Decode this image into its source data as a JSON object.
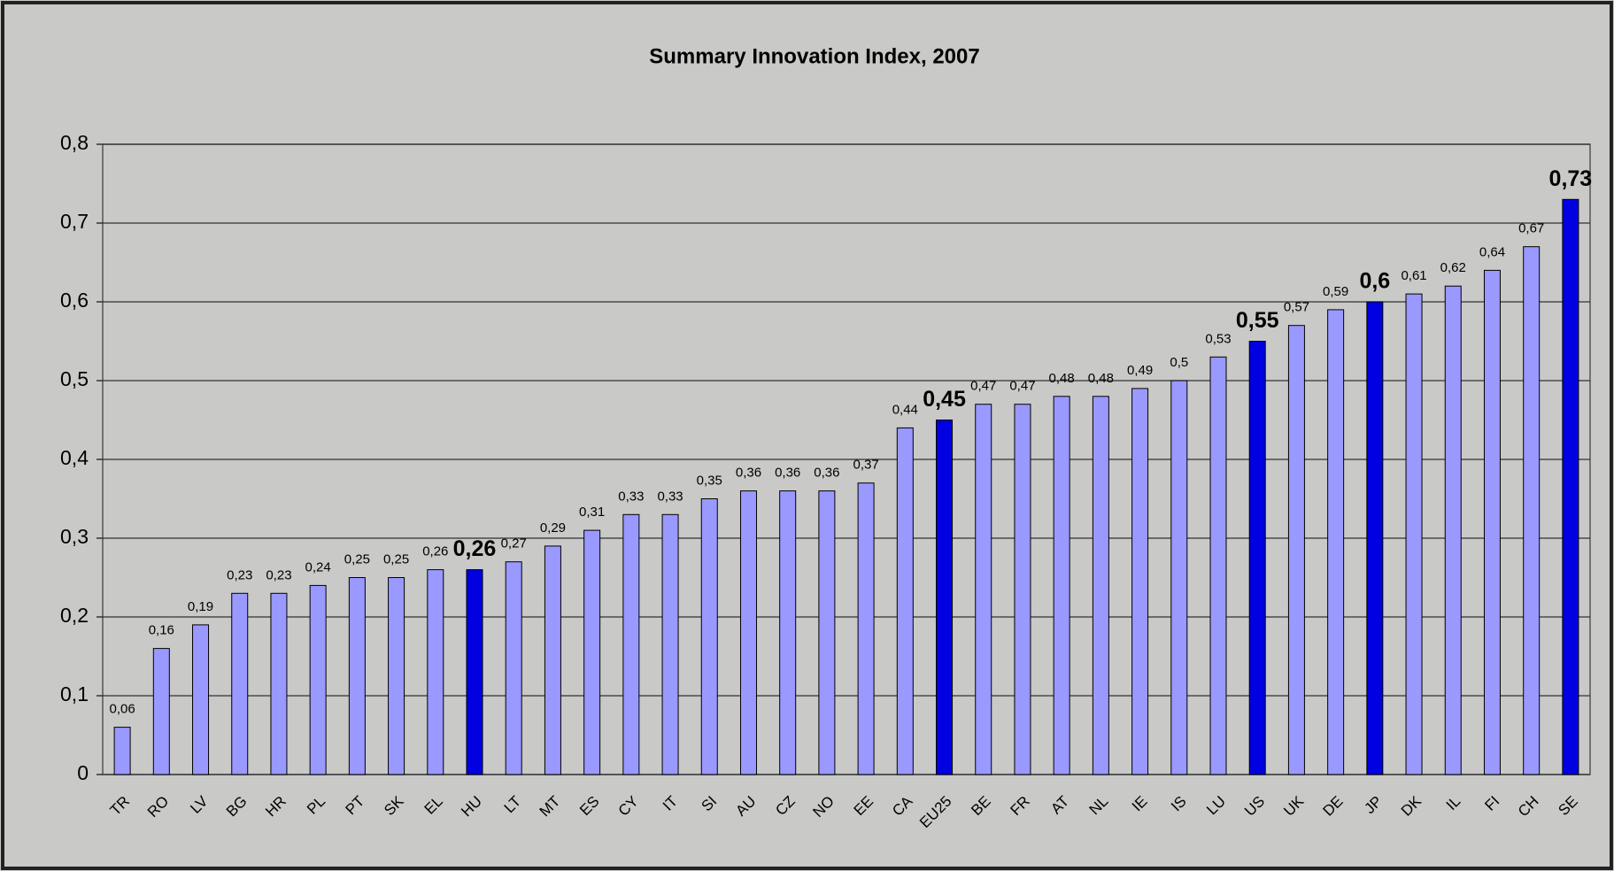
{
  "chart_data": {
    "type": "bar",
    "title": "Summary Innovation Index, 2007",
    "categories": [
      "TR",
      "RO",
      "LV",
      "BG",
      "HR",
      "PL",
      "PT",
      "SK",
      "EL",
      "HU",
      "LT",
      "MT",
      "ES",
      "CY",
      "IT",
      "SI",
      "AU",
      "CZ",
      "NO",
      "EE",
      "CA",
      "EU25",
      "BE",
      "FR",
      "AT",
      "NL",
      "IE",
      "IS",
      "LU",
      "US",
      "UK",
      "DE",
      "JP",
      "DK",
      "IL",
      "FI",
      "CH",
      "SE"
    ],
    "values": [
      0.06,
      0.16,
      0.19,
      0.23,
      0.23,
      0.24,
      0.25,
      0.25,
      0.26,
      0.26,
      0.27,
      0.29,
      0.31,
      0.33,
      0.33,
      0.35,
      0.36,
      0.36,
      0.36,
      0.37,
      0.44,
      0.45,
      0.47,
      0.47,
      0.48,
      0.48,
      0.49,
      0.5,
      0.53,
      0.55,
      0.57,
      0.59,
      0.6,
      0.61,
      0.62,
      0.64,
      0.67,
      0.73
    ],
    "value_labels": [
      "0,06",
      "0,16",
      "0,19",
      "0,23",
      "0,23",
      "0,24",
      "0,25",
      "0,25",
      "0,26",
      "0,26",
      "0,27",
      "0,29",
      "0,31",
      "0,33",
      "0,33",
      "0,35",
      "0,36",
      "0,36",
      "0,36",
      "0,37",
      "0,44",
      "0,45",
      "0,47",
      "0,47",
      "0,48",
      "0,48",
      "0,49",
      "0,5",
      "0,53",
      "0,55",
      "0,57",
      "0,59",
      "0,6",
      "0,61",
      "0,62",
      "0,64",
      "0,67",
      "0,73"
    ],
    "color": "#9999ff",
    "colors": [
      "#9999ff",
      "#9999ff",
      "#9999ff",
      "#9999ff",
      "#9999ff",
      "#9999ff",
      "#9999ff",
      "#9999ff",
      "#9999ff",
      "#0000e0",
      "#9999ff",
      "#9999ff",
      "#9999ff",
      "#9999ff",
      "#9999ff",
      "#9999ff",
      "#9999ff",
      "#9999ff",
      "#9999ff",
      "#9999ff",
      "#9999ff",
      "#0000e0",
      "#9999ff",
      "#9999ff",
      "#9999ff",
      "#9999ff",
      "#9999ff",
      "#9999ff",
      "#9999ff",
      "#0000e0",
      "#9999ff",
      "#9999ff",
      "#0000e0",
      "#9999ff",
      "#9999ff",
      "#9999ff",
      "#9999ff",
      "#0000e0"
    ],
    "ylim": [
      0,
      0.8
    ],
    "yticks": [
      0,
      {
        "value": 0.1,
        "label": "0,1"
      },
      {
        "value": 0.2,
        "label": "0,2"
      },
      {
        "value": 0.3,
        "label": "0,3"
      },
      {
        "value": 0.4,
        "label": "0,4"
      },
      {
        "value": 0.5,
        "label": "0,5"
      },
      {
        "value": 0.6,
        "label": "0,6"
      },
      {
        "value": 0.7,
        "label": "0,7"
      },
      {
        "value": 0.8,
        "label": "0,8"
      }
    ],
    "grid": true
  }
}
